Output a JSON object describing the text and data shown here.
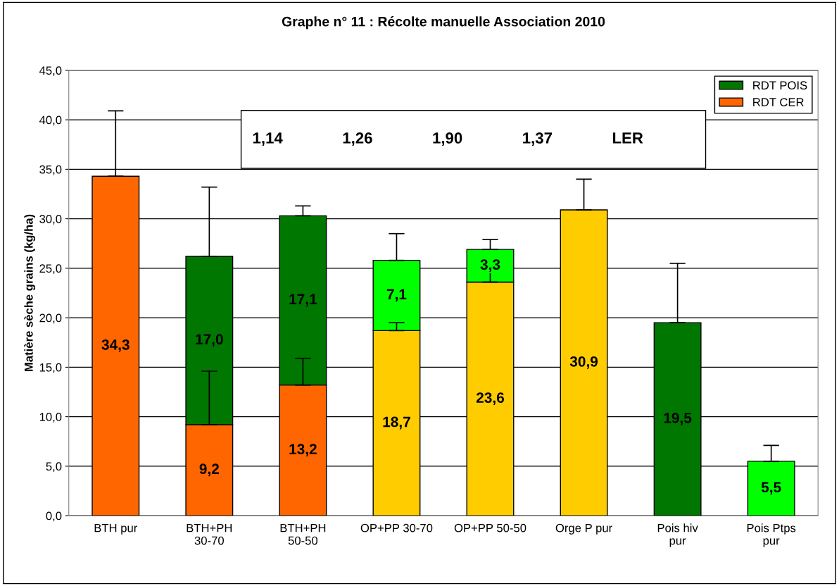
{
  "chart_data": {
    "type": "bar",
    "stacked": true,
    "title": "Graphe n° 11 : Récolte manuelle Association 2010",
    "ylabel": "Matière sèche grains (kg/ha)",
    "categories": [
      "BTH pur",
      "BTH+PH 30-70",
      "BTH+PH 50-50",
      "OP+PP 30-70",
      "OP+PP 50-50",
      "Orge P pur",
      "Pois hiv pur",
      "Pois Ptps pur"
    ],
    "series": [
      {
        "name": "RDT CER",
        "color": "#ff6600",
        "colors": [
          "#ff6600",
          "#ff6600",
          "#ff6600",
          "#ffcc00",
          "#ffcc00",
          "#ffcc00",
          "#ff6600",
          "#ff6600"
        ],
        "values": [
          34.3,
          9.2,
          13.2,
          18.7,
          23.6,
          30.9,
          null,
          null
        ],
        "value_labels": [
          "34,3",
          "9,2",
          "13,2",
          "18,7",
          "23,6",
          "30,9",
          null,
          null
        ],
        "errors": [
          [
            34.3,
            40.9
          ],
          [
            9.2,
            14.6
          ],
          [
            13.2,
            15.9
          ],
          [
            18.7,
            19.5
          ],
          [
            23.6,
            25.2
          ],
          [
            30.9,
            34.0
          ],
          null,
          null
        ]
      },
      {
        "name": "RDT POIS",
        "color": "#007700",
        "colors": [
          "#007700",
          "#007700",
          "#007700",
          "#00ff00",
          "#00ff00",
          "#00ff00",
          "#007700",
          "#00ff00"
        ],
        "values": [
          null,
          17.0,
          17.1,
          7.1,
          3.3,
          null,
          19.5,
          5.5
        ],
        "value_labels": [
          null,
          "17,0",
          "17,1",
          "7,1",
          "3,3",
          null,
          "19,5",
          "5,5"
        ],
        "errors": [
          null,
          [
            26.2,
            33.2
          ],
          [
            30.3,
            31.3
          ],
          [
            25.8,
            28.5
          ],
          [
            26.9,
            27.9
          ],
          null,
          [
            19.5,
            25.5
          ],
          [
            5.5,
            7.1
          ]
        ]
      }
    ],
    "ylim": [
      0,
      45
    ],
    "yticks": [
      {
        "value": 0,
        "label": "0,0"
      },
      {
        "value": 5,
        "label": "5,0"
      },
      {
        "value": 10,
        "label": "10,0"
      },
      {
        "value": 15,
        "label": "15,0"
      },
      {
        "value": 20,
        "label": "20,0"
      },
      {
        "value": 25,
        "label": "25,0"
      },
      {
        "value": 30,
        "label": "30,0"
      },
      {
        "value": 35,
        "label": "35,0"
      },
      {
        "value": 40,
        "label": "40,0"
      },
      {
        "value": 45,
        "label": "45,0"
      }
    ],
    "grid": "y",
    "legend": "top right",
    "annotations": [
      "1,14",
      "1,26",
      "1,90",
      "1,37",
      "LER"
    ]
  }
}
